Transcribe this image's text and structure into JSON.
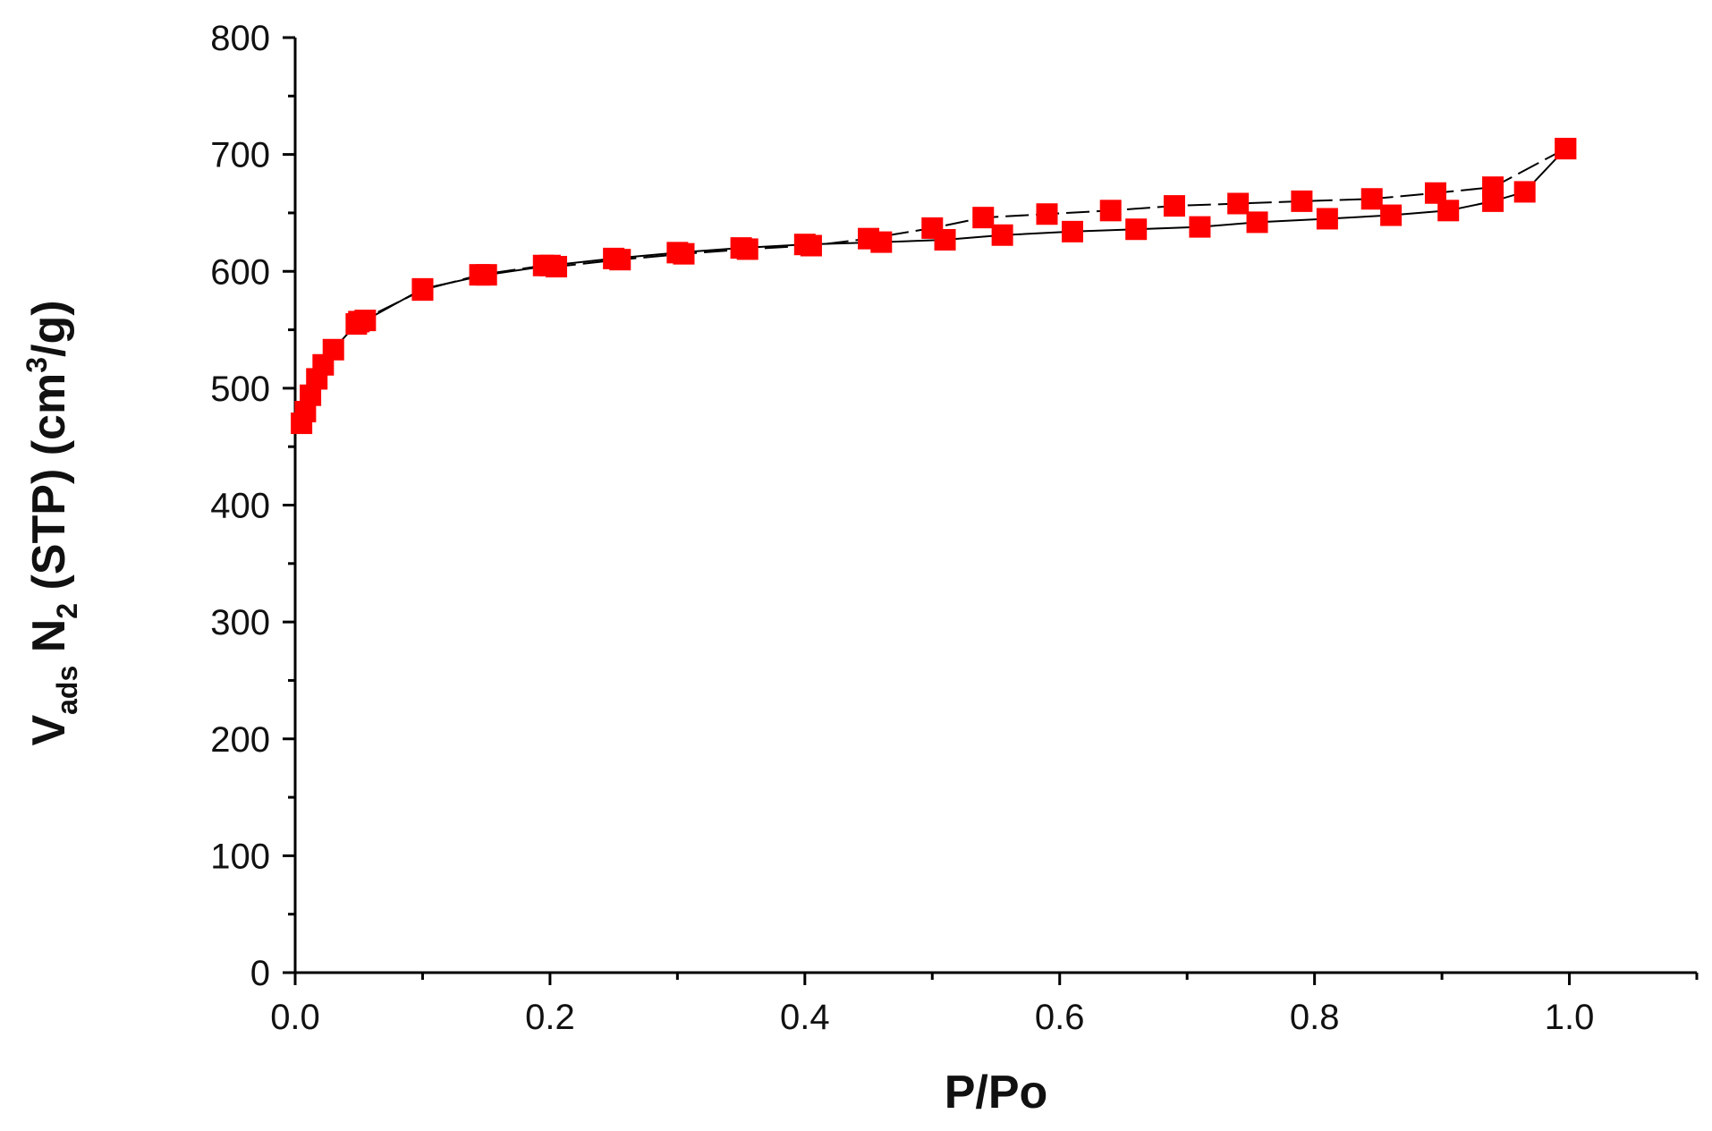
{
  "chart_data": {
    "type": "scatter",
    "title": "",
    "xlabel": "P/Po",
    "ylabel": {
      "parts": [
        {
          "text": "V",
          "style": "normal"
        },
        {
          "text": "ads",
          "style": "sub"
        },
        {
          "text": " N",
          "style": "normal"
        },
        {
          "text": "2",
          "style": "sub"
        },
        {
          "text": " (STP) (cm",
          "style": "normal"
        },
        {
          "text": "3",
          "style": "sup"
        },
        {
          "text": "/g)",
          "style": "normal"
        }
      ]
    },
    "xlim": [
      0.0,
      1.1
    ],
    "ylim": [
      0,
      800
    ],
    "x_ticks": [
      0.0,
      0.2,
      0.4,
      0.6,
      0.8,
      1.0
    ],
    "x_tick_labels": [
      "0.0",
      "0.2",
      "0.4",
      "0.6",
      "0.8",
      "1.0"
    ],
    "y_ticks": [
      0,
      100,
      200,
      300,
      400,
      500,
      600,
      700,
      800
    ],
    "y_tick_labels": [
      "0",
      "100",
      "200",
      "300",
      "400",
      "500",
      "600",
      "700",
      "800"
    ],
    "grid": false,
    "legend": "none",
    "colors": {
      "marker": "#ff0000",
      "line": "#000000",
      "axis": "#000000"
    },
    "series": [
      {
        "marker": "square",
        "line": "solid",
        "points": [
          [
            0.005,
            470
          ],
          [
            0.008,
            480
          ],
          [
            0.012,
            494
          ],
          [
            0.017,
            508
          ],
          [
            0.022,
            520
          ],
          [
            0.03,
            533
          ],
          [
            0.048,
            555
          ],
          [
            0.055,
            558
          ],
          [
            0.1,
            585
          ],
          [
            0.15,
            597
          ],
          [
            0.2,
            605
          ],
          [
            0.25,
            611
          ],
          [
            0.3,
            616
          ],
          [
            0.35,
            620
          ],
          [
            0.4,
            623
          ],
          [
            0.46,
            625
          ],
          [
            0.51,
            627
          ],
          [
            0.555,
            631
          ],
          [
            0.61,
            634
          ],
          [
            0.66,
            636
          ],
          [
            0.71,
            638
          ],
          [
            0.755,
            642
          ],
          [
            0.81,
            645
          ],
          [
            0.86,
            648
          ],
          [
            0.905,
            652
          ],
          [
            0.94,
            660
          ],
          [
            0.965,
            668
          ],
          [
            0.997,
            705
          ]
        ]
      },
      {
        "marker": "square",
        "line": "dashed",
        "points": [
          [
            0.997,
            705
          ],
          [
            0.94,
            672
          ],
          [
            0.895,
            667
          ],
          [
            0.845,
            662
          ],
          [
            0.79,
            660
          ],
          [
            0.74,
            658
          ],
          [
            0.69,
            656
          ],
          [
            0.64,
            652
          ],
          [
            0.59,
            649
          ],
          [
            0.54,
            646
          ],
          [
            0.5,
            637
          ],
          [
            0.45,
            628
          ],
          [
            0.405,
            622
          ],
          [
            0.355,
            619
          ],
          [
            0.305,
            615
          ],
          [
            0.255,
            610
          ],
          [
            0.205,
            604
          ],
          [
            0.195,
            605
          ],
          [
            0.145,
            597
          ],
          [
            0.1,
            584
          ],
          [
            0.05,
            557
          ]
        ]
      }
    ]
  }
}
